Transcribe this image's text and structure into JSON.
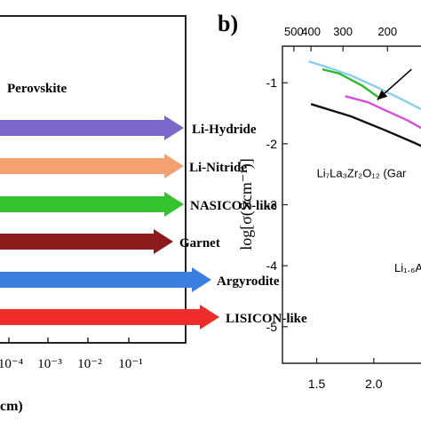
{
  "chart_data": [
    {
      "type": "bar",
      "orientation": "horizontal",
      "panel": "a",
      "categories": [
        "Perovskite",
        "Li-Hydride",
        "Li-Nitride",
        "NASICON-like",
        "Garnet",
        "Argyrodite",
        "LISICON-like"
      ],
      "arrow_colors": [
        "",
        "#7b68c8",
        "#f4a070",
        "#34c22e",
        "#8b1a1a",
        "#3a7ee0",
        "#ee2c2c"
      ],
      "x_scale": "log",
      "x_ticks": [
        "10⁻⁴",
        "10⁻³",
        "10⁻²",
        "10⁻¹"
      ],
      "xlabel_fragment": "cm)",
      "ylabel": "",
      "title": ""
    },
    {
      "type": "line",
      "panel": "b",
      "panel_label": "b)",
      "xlabel": "",
      "x_ticks": [
        "1.5",
        "2.0"
      ],
      "xlim": [
        1.2,
        2.6
      ],
      "ylabel": "log[σ(Scm⁻¹)]",
      "y_ticks": [
        "-1",
        "-2",
        "-3",
        "-4",
        "-5"
      ],
      "ylim": [
        -5.6,
        -0.4
      ],
      "top_axis_ticks": [
        "500",
        "400",
        "300",
        "200"
      ],
      "top_axis_positions": [
        1.3,
        1.45,
        1.73,
        2.12
      ],
      "series": [
        {
          "name": "",
          "color": "#8ccfe8",
          "x": [
            1.43,
            1.6,
            1.8,
            2.0,
            2.2,
            2.4,
            2.55
          ],
          "y": [
            -0.65,
            -0.75,
            -0.88,
            -1.05,
            -1.23,
            -1.42,
            -1.58
          ]
        },
        {
          "name": "",
          "color": "#2fb830",
          "x": [
            1.55,
            1.7,
            1.9,
            2.05
          ],
          "y": [
            -0.78,
            -0.85,
            -1.05,
            -1.25
          ]
        },
        {
          "name": "",
          "color": "#d84fd8",
          "x": [
            1.75,
            1.95,
            2.1,
            2.3,
            2.45
          ],
          "y": [
            -1.22,
            -1.32,
            -1.45,
            -1.62,
            -1.78
          ]
        },
        {
          "name": "",
          "color": "#111111",
          "x": [
            1.45,
            1.8,
            2.1,
            2.35,
            2.55
          ],
          "y": [
            -1.35,
            -1.55,
            -1.78,
            -1.98,
            -2.15
          ]
        }
      ],
      "annotations": [
        {
          "text": "Li₇La₃Zr₂O₁₂ (Gar",
          "x": 1.5,
          "y": -2.55
        },
        {
          "text": "Li₁.₆A",
          "x": 2.18,
          "y": -4.1
        }
      ],
      "arrow": {
        "from": [
          2.33,
          -0.78
        ],
        "to": [
          2.03,
          -1.28
        ]
      }
    }
  ]
}
